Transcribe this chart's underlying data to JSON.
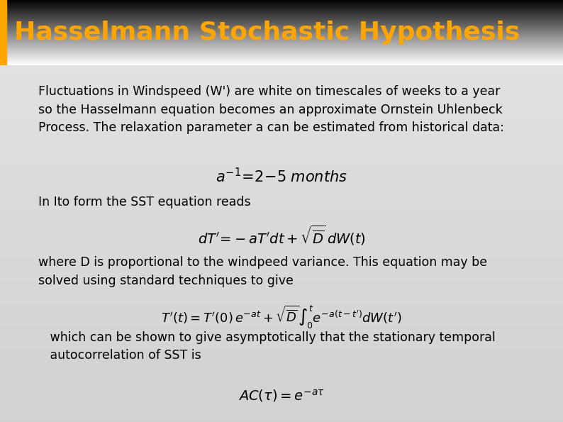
{
  "title": "Hasselmann Stochastic Hypothesis",
  "title_color": "#FFA500",
  "body_bg_color_top": "#d0d0d0",
  "body_bg_color_bottom": "#c0c0c0",
  "left_bar_color": "#FFA500",
  "body_text_color": "#000000",
  "para1": "Fluctuations in Windspeed (W') are white on timescales of weeks to a year\nso the Hasselmann equation becomes an approximate Ornstein Uhlenbeck\nProcess. The relaxation parameter a can be estimated from historical data:",
  "eq1": "$a^{-1}\\!=\\!2\\!-\\!5\\;\\mathit{months}$",
  "para2": "In Ito form the SST equation reads",
  "eq2": "$dT'\\!=\\!-aT'dt + \\sqrt{\\overline{D}}\\,dW(t)$",
  "para3": "where D is proportional to the windpeed variance. This equation may be\nsolved using standard techniques to give",
  "eq3": "$T'(t) = T'(0)\\,e^{-at} + \\sqrt{\\overline{D}}\\int_0^t e^{-a(t-t')}dW(t')$",
  "para4": "   which can be shown to give asymptotically that the stationary temporal\n   autocorrelation of SST is",
  "eq4": "$AC(\\tau) = e^{-a\\tau}$",
  "title_fontsize": 26,
  "body_fontsize": 12.5,
  "eq_fontsize": 13
}
